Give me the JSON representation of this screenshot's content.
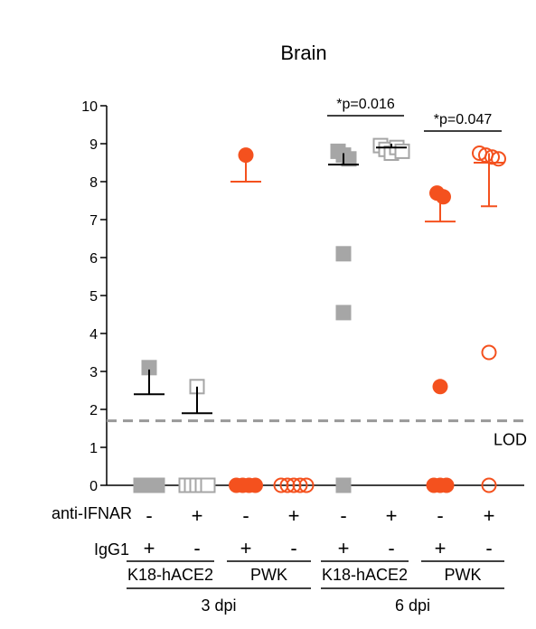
{
  "chart_data": {
    "type": "scatter",
    "title": "Brain",
    "ylim": [
      0,
      10
    ],
    "yticks": [
      "0",
      "1",
      "2",
      "3",
      "4",
      "5",
      "6",
      "7",
      "8",
      "9",
      "10"
    ],
    "lod": {
      "value": 1.7,
      "label": "LOD"
    },
    "colors": {
      "gray": "#a6a6a6",
      "orange": "#f4511e",
      "axis": "#000000",
      "lod_line": "#999999"
    },
    "rows": {
      "anti_ifnar": {
        "label": "anti-IFNAR",
        "signs": [
          "-",
          "+",
          "-",
          "+",
          "-",
          "+",
          "-",
          "+"
        ]
      },
      "igg1": {
        "label": "IgG1",
        "signs": [
          "+",
          "-",
          "+",
          "-",
          "+",
          "-",
          "+",
          "-"
        ]
      }
    },
    "strains": [
      "K18-hACE2",
      "PWK",
      "K18-hACE2",
      "PWK"
    ],
    "timepoints": [
      "3 dpi",
      "6 dpi"
    ],
    "groups": [
      {
        "strain": "K18-hACE2",
        "dpi": "3 dpi",
        "marker": "square-filled",
        "color": "gray",
        "points": [
          3.1,
          0,
          0,
          0,
          0
        ],
        "mean": 2.4,
        "sd_upper": 3.05
      },
      {
        "strain": "K18-hACE2",
        "dpi": "3 dpi",
        "marker": "square-open",
        "color": "gray",
        "points": [
          2.6,
          0,
          0,
          0,
          0,
          0
        ],
        "mean": 1.9,
        "sd_upper": 2.6
      },
      {
        "strain": "PWK",
        "dpi": "3 dpi",
        "marker": "circle-filled",
        "color": "orange",
        "points": [
          8.7,
          0,
          0,
          0,
          0
        ],
        "mean": 8.0,
        "sd_upper": 8.7
      },
      {
        "strain": "PWK",
        "dpi": "3 dpi",
        "marker": "circle-open",
        "color": "orange",
        "points": [
          0,
          0,
          0,
          0,
          0
        ],
        "mean": null,
        "sd_upper": null
      },
      {
        "strain": "K18-hACE2",
        "dpi": "6 dpi",
        "marker": "square-filled",
        "color": "gray",
        "points": [
          8.8,
          8.7,
          8.6,
          6.1,
          4.55,
          0
        ],
        "mean": 8.45,
        "sd_upper": 8.75
      },
      {
        "strain": "K18-hACE2",
        "dpi": "6 dpi",
        "marker": "square-open",
        "color": "gray",
        "points": [
          8.95,
          8.85,
          8.75,
          8.9,
          8.8
        ],
        "mean": 8.9,
        "sd_upper": 9.0
      },
      {
        "strain": "PWK",
        "dpi": "6 dpi",
        "marker": "circle-filled",
        "color": "orange",
        "points": [
          7.7,
          7.6,
          2.6,
          0,
          0,
          0
        ],
        "mean": 6.95,
        "sd_upper": 7.65
      },
      {
        "strain": "PWK",
        "dpi": "6 dpi",
        "marker": "circle-open",
        "color": "orange",
        "points": [
          8.75,
          8.7,
          8.65,
          8.6,
          3.5,
          0
        ],
        "mean": 8.5,
        "sd_upper": 8.75,
        "sd_lower": 7.35
      }
    ],
    "annotations": [
      {
        "text": "*p=0.016",
        "from_group": 4,
        "to_group": 5
      },
      {
        "text": "*p=0.047",
        "from_group": 6,
        "to_group": 7
      }
    ]
  }
}
